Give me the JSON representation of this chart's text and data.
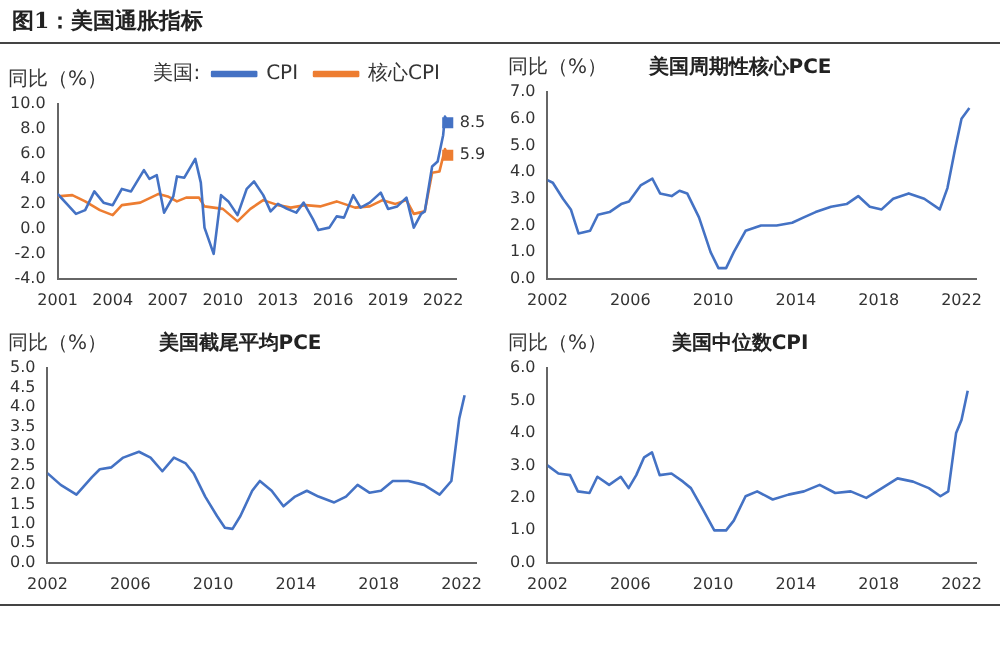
{
  "chart_data": [
    {
      "type": "line",
      "title": "图1：美国通胀指标",
      "ylabel": "同比（%）",
      "legend_title": "美国:",
      "legend": "top right",
      "xlim": [
        2001,
        2022.7
      ],
      "xticks": [
        2001,
        2004,
        2007,
        2010,
        2013,
        2016,
        2019,
        2022
      ],
      "ylim": [
        -4,
        10
      ],
      "yticks": [
        {
          "value": -4,
          "label": "-4.0"
        },
        {
          "value": -2,
          "label": "-2.0"
        },
        {
          "value": 0,
          "label": "0.0"
        },
        {
          "value": 2,
          "label": "2.0"
        },
        {
          "value": 4,
          "label": "4.0"
        },
        {
          "value": 6,
          "label": "6.0"
        },
        {
          "value": 8,
          "label": "8.0"
        },
        {
          "value": 10,
          "label": "10.0"
        }
      ],
      "series": [
        {
          "name": "CPI",
          "color": "#4472c4",
          "x": [
            2001,
            2001.5,
            2002,
            2002.5,
            2003,
            2003.5,
            2004,
            2004.5,
            2005,
            2005.7,
            2006,
            2006.4,
            2006.8,
            2007.3,
            2007.5,
            2007.9,
            2008.5,
            2008.8,
            2009,
            2009.5,
            2009.9,
            2010.3,
            2010.8,
            2011.3,
            2011.7,
            2012.2,
            2012.6,
            2013,
            2013.5,
            2014,
            2014.4,
            2014.9,
            2015.2,
            2015.8,
            2016.2,
            2016.6,
            2017.1,
            2017.5,
            2018,
            2018.6,
            2019,
            2019.5,
            2020,
            2020.4,
            2020.8,
            2021,
            2021.4,
            2021.7,
            2022,
            2022.1,
            2022.25
          ],
          "values": [
            2.8,
            2.0,
            1.2,
            1.5,
            3.0,
            2.1,
            1.9,
            3.2,
            3.0,
            4.7,
            4.0,
            4.3,
            1.3,
            2.6,
            4.2,
            4.1,
            5.6,
            3.7,
            0.1,
            -2.0,
            2.7,
            2.2,
            1.1,
            3.2,
            3.8,
            2.7,
            1.4,
            2.0,
            1.6,
            1.3,
            2.1,
            0.8,
            -0.1,
            0.1,
            1.0,
            0.9,
            2.7,
            1.7,
            2.1,
            2.9,
            1.6,
            1.8,
            2.5,
            0.1,
            1.2,
            1.4,
            5.0,
            5.4,
            7.5,
            9.0,
            8.5
          ],
          "value_labels": [
            null,
            null,
            null,
            null,
            null,
            null,
            null,
            null,
            null,
            null,
            null,
            null,
            null,
            null,
            null,
            null,
            null,
            null,
            null,
            null,
            null,
            null,
            null,
            null,
            null,
            null,
            null,
            null,
            null,
            null,
            null,
            null,
            null,
            null,
            null,
            null,
            null,
            null,
            null,
            null,
            null,
            null,
            null,
            null,
            null,
            null,
            null,
            null,
            null,
            null,
            "8.5"
          ]
        },
        {
          "name": "核心CPI",
          "color": "#ed7d31",
          "x": [
            2001,
            2001.8,
            2002.5,
            2003.3,
            2004,
            2004.5,
            2005.5,
            2006.5,
            2007,
            2007.5,
            2008,
            2008.7,
            2009,
            2010,
            2010.8,
            2011.5,
            2012.2,
            2013,
            2013.7,
            2014.5,
            2015.3,
            2016.2,
            2017.2,
            2018,
            2018.7,
            2019.4,
            2020,
            2020.4,
            2021,
            2021.4,
            2021.8,
            2022.1,
            2022.25
          ],
          "values": [
            2.6,
            2.7,
            2.2,
            1.5,
            1.1,
            1.9,
            2.1,
            2.8,
            2.6,
            2.2,
            2.5,
            2.5,
            1.8,
            1.6,
            0.6,
            1.6,
            2.3,
            1.9,
            1.7,
            1.9,
            1.8,
            2.2,
            1.7,
            1.8,
            2.3,
            2.0,
            2.3,
            1.2,
            1.4,
            4.5,
            4.6,
            6.4,
            5.9
          ],
          "value_labels": [
            null,
            null,
            null,
            null,
            null,
            null,
            null,
            null,
            null,
            null,
            null,
            null,
            null,
            null,
            null,
            null,
            null,
            null,
            null,
            null,
            null,
            null,
            null,
            null,
            null,
            null,
            null,
            null,
            null,
            null,
            null,
            null,
            "5.9"
          ]
        }
      ]
    },
    {
      "type": "line",
      "title": "美国周期性核心PCE",
      "ylabel": "同比（%）",
      "xlim": [
        2002,
        2022.7
      ],
      "xticks": [
        2002,
        2006,
        2010,
        2014,
        2018,
        2022
      ],
      "ylim": [
        0,
        7
      ],
      "yticks": [
        {
          "value": 0,
          "label": "0.0"
        },
        {
          "value": 1,
          "label": "1.0"
        },
        {
          "value": 2,
          "label": "2.0"
        },
        {
          "value": 3,
          "label": "3.0"
        },
        {
          "value": 4,
          "label": "4.0"
        },
        {
          "value": 5,
          "label": "5.0"
        },
        {
          "value": 6,
          "label": "6.0"
        },
        {
          "value": 7,
          "label": "7.0"
        }
      ],
      "series": [
        {
          "color": "#4472c4",
          "x": [
            2002,
            2002.26,
            2002.75,
            2003.13,
            2003.5,
            2004.06,
            2004.44,
            2005,
            2005.56,
            2005.94,
            2006.5,
            2007.07,
            2007.44,
            2008,
            2008.38,
            2008.75,
            2009.32,
            2009.88,
            2010.26,
            2010.63,
            2011,
            2011.57,
            2012.32,
            2013.07,
            2013.82,
            2014.38,
            2014.95,
            2015.7,
            2016.45,
            2017.01,
            2017.57,
            2018.14,
            2018.7,
            2019.45,
            2020.2,
            2020.95,
            2021.32,
            2021.7,
            2022,
            2022.38
          ],
          "values": [
            3.7,
            3.6,
            3.0,
            2.6,
            1.7,
            1.8,
            2.4,
            2.5,
            2.8,
            2.9,
            3.5,
            3.75,
            3.2,
            3.1,
            3.3,
            3.2,
            2.3,
            1.0,
            0.4,
            0.4,
            1.0,
            1.8,
            2.0,
            2.0,
            2.1,
            2.3,
            2.5,
            2.7,
            2.8,
            3.1,
            2.7,
            2.6,
            3.0,
            3.2,
            3.0,
            2.6,
            3.4,
            4.9,
            6.0,
            6.4
          ]
        }
      ]
    },
    {
      "type": "line",
      "title": "美国截尾平均PCE",
      "ylabel": "同比（%）",
      "xlim": [
        2002,
        2022.7
      ],
      "xticks": [
        2002,
        2006,
        2010,
        2014,
        2018,
        2022
      ],
      "ylim": [
        0,
        5
      ],
      "yticks": [
        {
          "value": 0,
          "label": "0.0"
        },
        {
          "value": 0.5,
          "label": "0.5"
        },
        {
          "value": 1,
          "label": "1.0"
        },
        {
          "value": 1.5,
          "label": "1.5"
        },
        {
          "value": 2,
          "label": "2.0"
        },
        {
          "value": 2.5,
          "label": "2.5"
        },
        {
          "value": 3,
          "label": "3.0"
        },
        {
          "value": 3.5,
          "label": "3.5"
        },
        {
          "value": 4,
          "label": "4.0"
        },
        {
          "value": 4.5,
          "label": "4.5"
        },
        {
          "value": 5,
          "label": "5.0"
        }
      ],
      "series": [
        {
          "color": "#4472c4",
          "x": [
            2002,
            2002.64,
            2003.4,
            2004.15,
            2004.53,
            2005.09,
            2005.66,
            2006.42,
            2006.98,
            2007.55,
            2008.11,
            2008.68,
            2009.06,
            2009.62,
            2010.19,
            2010.57,
            2010.94,
            2011.32,
            2011.89,
            2012.26,
            2012.83,
            2013.4,
            2013.96,
            2014.53,
            2015.09,
            2015.85,
            2016.42,
            2016.98,
            2017.55,
            2018.11,
            2018.68,
            2019.43,
            2020.19,
            2020.94,
            2021.51,
            2021.89,
            2022.15
          ],
          "values": [
            2.3,
            2.0,
            1.75,
            2.2,
            2.4,
            2.45,
            2.7,
            2.85,
            2.7,
            2.35,
            2.7,
            2.55,
            2.3,
            1.7,
            1.2,
            0.9,
            0.87,
            1.2,
            1.85,
            2.1,
            1.85,
            1.45,
            1.7,
            1.85,
            1.7,
            1.55,
            1.7,
            2.0,
            1.8,
            1.85,
            2.1,
            2.1,
            2.0,
            1.75,
            2.1,
            3.7,
            4.3
          ]
        }
      ]
    },
    {
      "type": "line",
      "title": "美国中位数CPI",
      "ylabel": "同比（%）",
      "xlim": [
        2002,
        2022.7
      ],
      "xticks": [
        2002,
        2006,
        2010,
        2014,
        2018,
        2022
      ],
      "ylim": [
        0,
        6
      ],
      "yticks": [
        {
          "value": 0,
          "label": "0.0"
        },
        {
          "value": 1,
          "label": "1.0"
        },
        {
          "value": 2,
          "label": "2.0"
        },
        {
          "value": 3,
          "label": "3.0"
        },
        {
          "value": 4,
          "label": "4.0"
        },
        {
          "value": 5,
          "label": "5.0"
        },
        {
          "value": 6,
          "label": "6.0"
        }
      ],
      "series": [
        {
          "color": "#4472c4",
          "x": [
            2002,
            2002.53,
            2003.09,
            2003.47,
            2004.03,
            2004.41,
            2004.98,
            2005.54,
            2005.92,
            2006.29,
            2006.67,
            2007.05,
            2007.42,
            2007.99,
            2008.55,
            2008.93,
            2009.5,
            2010.06,
            2010.63,
            2011,
            2011.57,
            2012.13,
            2012.88,
            2013.64,
            2014.39,
            2015.15,
            2015.9,
            2016.65,
            2017.4,
            2018.16,
            2018.91,
            2019.66,
            2020.42,
            2020.98,
            2021.36,
            2021.74,
            2022,
            2022.3
          ],
          "values": [
            3.0,
            2.75,
            2.7,
            2.2,
            2.15,
            2.65,
            2.4,
            2.65,
            2.3,
            2.7,
            3.25,
            3.4,
            2.7,
            2.75,
            2.5,
            2.3,
            1.65,
            1.0,
            1.0,
            1.3,
            2.05,
            2.2,
            1.95,
            2.1,
            2.2,
            2.4,
            2.15,
            2.2,
            2.0,
            2.3,
            2.6,
            2.5,
            2.3,
            2.05,
            2.2,
            4.0,
            4.4,
            5.3
          ]
        }
      ]
    }
  ]
}
